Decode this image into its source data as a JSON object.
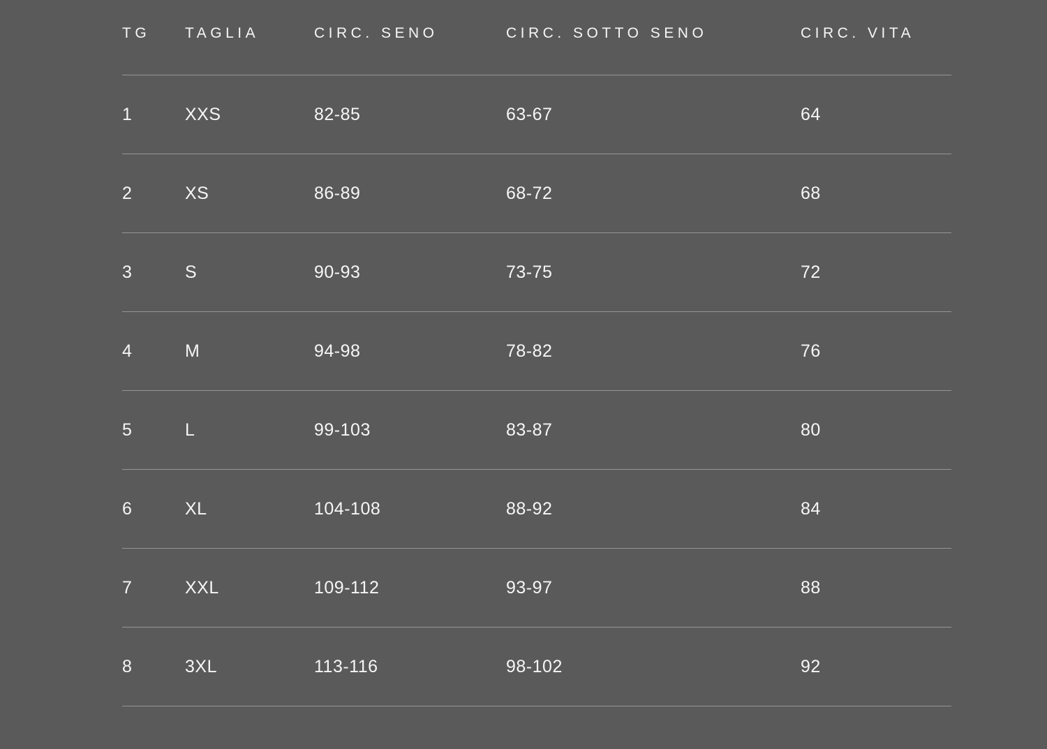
{
  "colors": {
    "background": "#5a5a5a",
    "divider": "#969696",
    "text": "#f6f6f6"
  },
  "chart_data": {
    "type": "table",
    "title": "",
    "columns": [
      "TG",
      "TAGLIA",
      "CIRC. SENO",
      "CIRC. SOTTO SENO",
      "CIRC. VITA"
    ],
    "rows": [
      [
        "1",
        "XXS",
        "82-85",
        "63-67",
        "64"
      ],
      [
        "2",
        "XS",
        "86-89",
        "68-72",
        "68"
      ],
      [
        "3",
        "S",
        "90-93",
        "73-75",
        "72"
      ],
      [
        "4",
        "M",
        "94-98",
        "78-82",
        "76"
      ],
      [
        "5",
        "L",
        "99-103",
        "83-87",
        "80"
      ],
      [
        "6",
        "XL",
        "104-108",
        "88-92",
        "84"
      ],
      [
        "7",
        "XXL",
        "109-112",
        "93-97",
        "88"
      ],
      [
        "8",
        "3XL",
        "113-116",
        "98-102",
        "92"
      ]
    ]
  }
}
